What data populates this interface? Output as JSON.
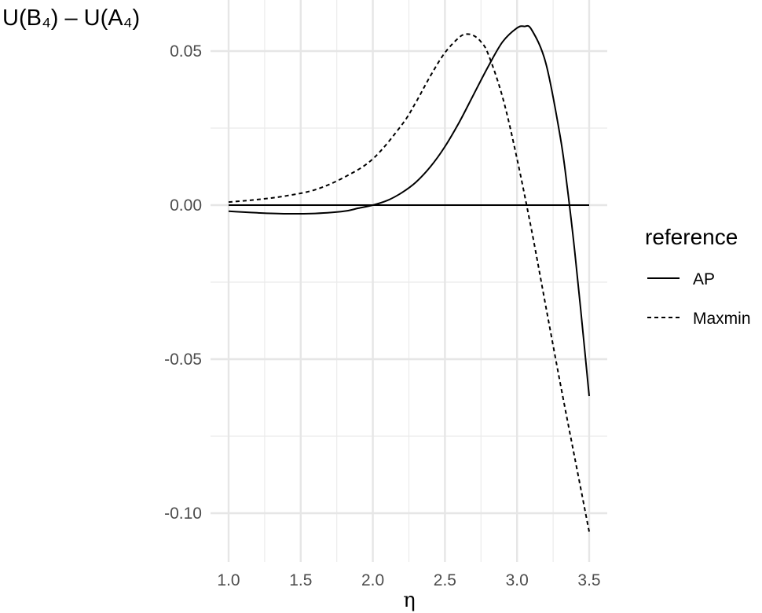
{
  "chart_data": {
    "type": "line",
    "title": "",
    "xlabel": "η",
    "ylabel": "U(B₄) – U(A₄)",
    "xlim": [
      1.0,
      3.5
    ],
    "ylim": [
      -0.11,
      0.062
    ],
    "x_ticks": [
      "1.0",
      "1.5",
      "2.0",
      "2.5",
      "3.0",
      "3.5"
    ],
    "y_ticks": [
      "0.05",
      "0.00",
      "-0.05",
      "-0.10"
    ],
    "grid": true,
    "hline": 0,
    "legend": {
      "title": "reference",
      "placement": "right",
      "entries": [
        "AP",
        "Maxmin"
      ]
    },
    "series": [
      {
        "name": "AP",
        "line_style": "solid",
        "color": "#000000",
        "x": [
          1.0,
          1.2,
          1.4,
          1.6,
          1.8,
          1.9,
          2.0,
          2.1,
          2.2,
          2.3,
          2.4,
          2.5,
          2.6,
          2.7,
          2.8,
          2.9,
          3.0,
          3.05,
          3.1,
          3.2,
          3.3,
          3.35,
          3.4,
          3.45,
          3.5
        ],
        "y": [
          -0.002,
          -0.0025,
          -0.0028,
          -0.0027,
          -0.002,
          -0.001,
          0.0,
          0.0015,
          0.004,
          0.0075,
          0.0125,
          0.019,
          0.027,
          0.036,
          0.045,
          0.053,
          0.0575,
          0.058,
          0.057,
          0.046,
          0.022,
          0.005,
          -0.015,
          -0.038,
          -0.062
        ]
      },
      {
        "name": "Maxmin",
        "line_style": "dashed",
        "color": "#000000",
        "x": [
          1.0,
          1.2,
          1.4,
          1.6,
          1.8,
          2.0,
          2.2,
          2.3,
          2.4,
          2.5,
          2.6,
          2.65,
          2.7,
          2.75,
          2.8,
          2.9,
          3.0,
          3.1,
          3.2,
          3.3,
          3.4,
          3.5
        ],
        "y": [
          0.001,
          0.0018,
          0.003,
          0.005,
          0.009,
          0.015,
          0.026,
          0.0335,
          0.042,
          0.0495,
          0.0545,
          0.0555,
          0.055,
          0.053,
          0.049,
          0.035,
          0.015,
          -0.008,
          -0.033,
          -0.058,
          -0.082,
          -0.106
        ]
      }
    ]
  }
}
